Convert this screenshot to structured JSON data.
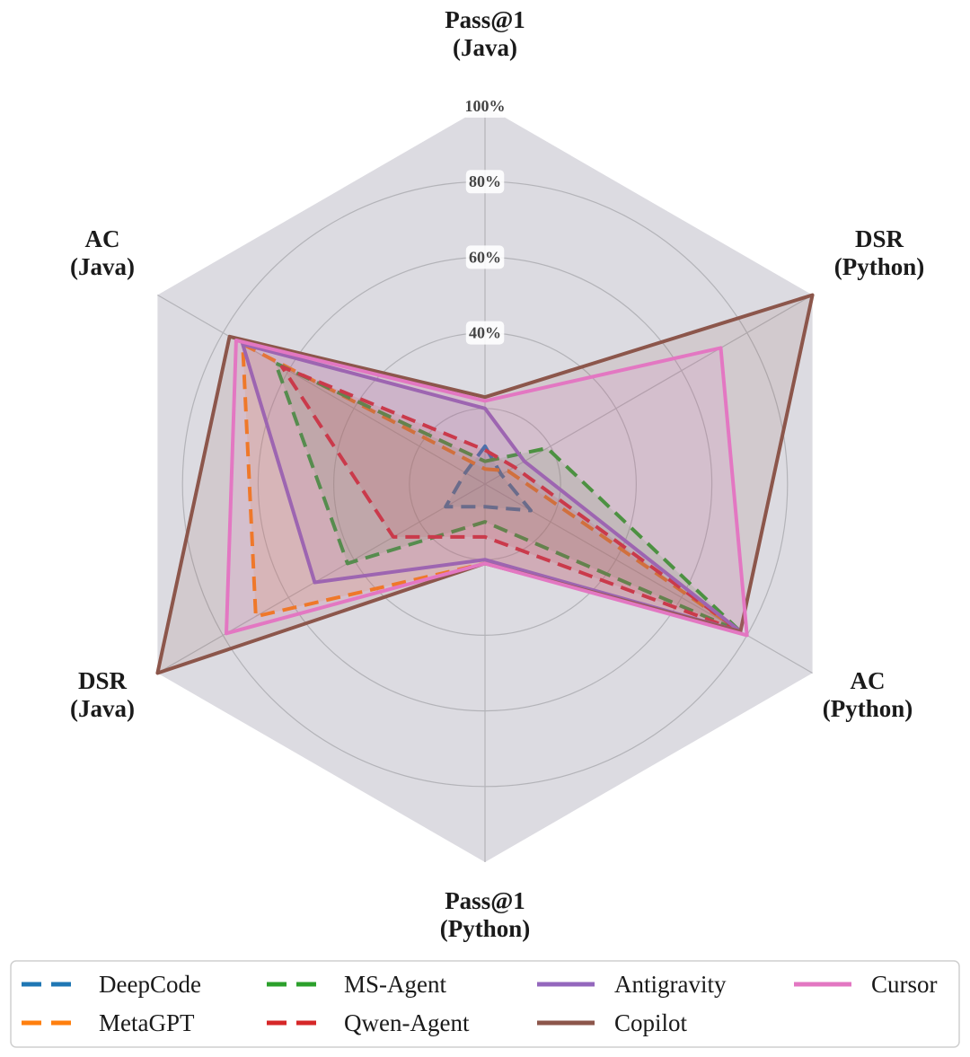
{
  "chart_data": {
    "type": "radar",
    "axes": [
      {
        "label": [
          "Pass@1",
          "(Java)"
        ]
      },
      {
        "label": [
          "DSR",
          "(Python)"
        ]
      },
      {
        "label": [
          "AC",
          "(Python)"
        ]
      },
      {
        "label": [
          "Pass@1",
          "(Python)"
        ]
      },
      {
        "label": [
          "DSR",
          "(Java)"
        ]
      },
      {
        "label": [
          "AC",
          "(Java)"
        ]
      }
    ],
    "rmin": 0,
    "rmax": 100,
    "ticks": [
      20,
      40,
      60,
      80,
      100
    ],
    "tick_labels": [
      "40%",
      "60%",
      "80%",
      "100%"
    ],
    "tick_label_values": [
      40,
      60,
      80,
      100
    ],
    "grid": true,
    "legend_position": "bottom",
    "series": [
      {
        "name": "DeepCode",
        "color": "#1f77b4",
        "dashed": true,
        "values": [
          10,
          5,
          14,
          6,
          12,
          6
        ]
      },
      {
        "name": "MetaGPT",
        "color": "#ff7f0e",
        "dashed": true,
        "values": [
          4,
          7,
          78,
          21,
          70,
          74
        ]
      },
      {
        "name": "MS-Agent",
        "color": "#2ca02c",
        "dashed": true,
        "values": [
          6,
          19,
          78,
          10,
          42,
          64
        ]
      },
      {
        "name": "Qwen-Agent",
        "color": "#d62728",
        "dashed": true,
        "values": [
          9,
          9,
          78,
          14,
          28,
          62
        ]
      },
      {
        "name": "Antigravity",
        "color": "#9467bd",
        "dashed": false,
        "values": [
          20,
          12,
          78,
          20,
          52,
          74
        ]
      },
      {
        "name": "Copilot",
        "color": "#8c564b",
        "dashed": false,
        "values": [
          23,
          100,
          78,
          21,
          100,
          78
        ]
      },
      {
        "name": "Cursor",
        "color": "#e377c2",
        "dashed": false,
        "values": [
          22,
          72,
          80,
          21,
          79,
          76
        ]
      }
    ]
  }
}
